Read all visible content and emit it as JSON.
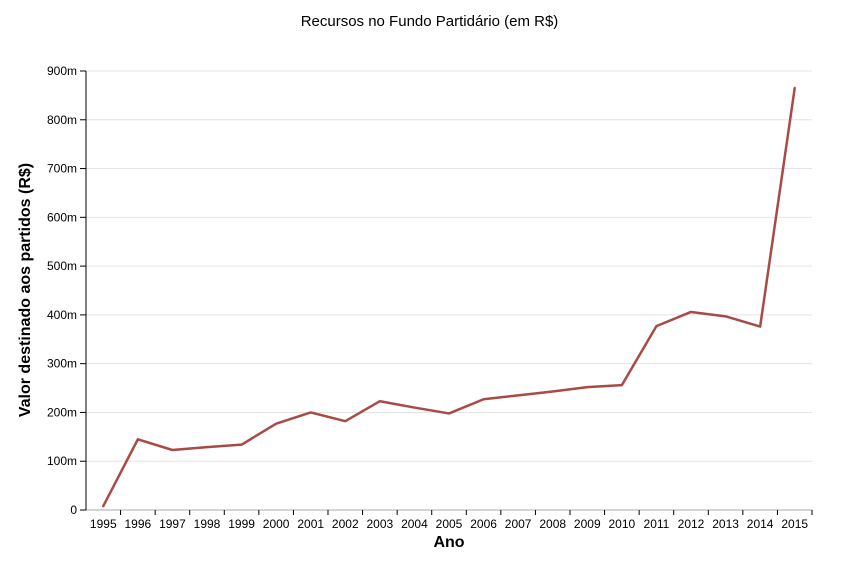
{
  "page": {
    "background": "#ffffff"
  },
  "chart_data": {
    "type": "line",
    "title": "Recursos no Fundo Partidário (em R$)",
    "xlabel": "Ano",
    "ylabel": "Valor destinado aos partidos (R$)",
    "categories": [
      "1995",
      "1996",
      "1997",
      "1998",
      "1999",
      "2000",
      "2001",
      "2002",
      "2003",
      "2004",
      "2005",
      "2006",
      "2007",
      "2008",
      "2009",
      "2010",
      "2011",
      "2012",
      "2013",
      "2014",
      "2015"
    ],
    "values_millions": [
      8,
      145,
      123,
      129,
      134,
      177,
      200,
      182,
      223,
      210,
      198,
      227,
      235,
      243,
      252,
      256,
      377,
      406,
      397,
      376,
      865
    ],
    "unit": "m",
    "ylim": [
      0,
      900
    ],
    "y_ticks": [
      {
        "value": 0,
        "label": "0"
      },
      {
        "value": 100,
        "label": "100m"
      },
      {
        "value": 200,
        "label": "200m"
      },
      {
        "value": 300,
        "label": "300m"
      },
      {
        "value": 400,
        "label": "400m"
      },
      {
        "value": 500,
        "label": "500m"
      },
      {
        "value": 600,
        "label": "600m"
      },
      {
        "value": 700,
        "label": "700m"
      },
      {
        "value": 800,
        "label": "800m"
      },
      {
        "value": 900,
        "label": "900m"
      }
    ],
    "grid": "horizontal",
    "legend": "none",
    "colors": {
      "line": "#a84a45",
      "grid": "#e4e4e4",
      "axis": "#000000",
      "baseline": "#aaaaaa",
      "text": "#000000"
    }
  }
}
